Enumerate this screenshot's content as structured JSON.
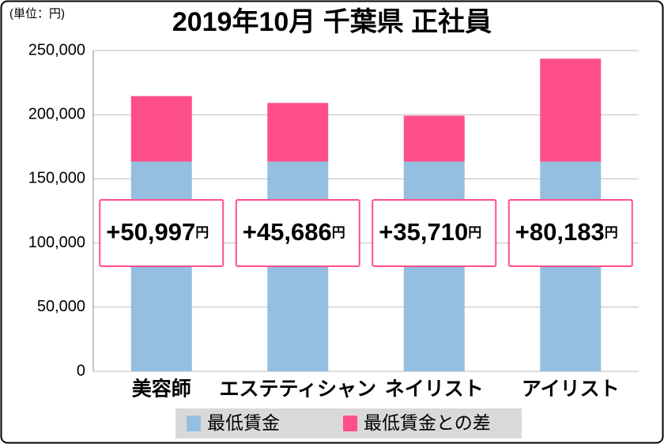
{
  "chart_data": {
    "type": "stacked_bar",
    "title": "2019年10月 千葉県 正社員",
    "unit_note": "(単位：円)",
    "categories": [
      "美容師",
      "エステティシャン",
      "ネイリスト",
      "アイリスト"
    ],
    "series": [
      {
        "name": "最低賃金",
        "color": "#95bfe0",
        "values": [
          163500,
          163500,
          163500,
          163500
        ]
      },
      {
        "name": "最低賃金との差",
        "color": "#ff4f8a",
        "values": [
          50997,
          45686,
          35710,
          80183
        ],
        "value_labels": [
          "+50,997",
          "+45,686",
          "+35,710",
          "+80,183"
        ],
        "value_label_unit": "円"
      }
    ],
    "ylim": [
      0,
      250000
    ],
    "yticks": [
      0,
      {
        "value": 50000,
        "label": "50,000"
      },
      {
        "value": 100000,
        "label": "100,000"
      },
      {
        "value": 150000,
        "label": "150,000"
      },
      {
        "value": 200000,
        "label": "200,000"
      },
      {
        "value": 250000,
        "label": "250,000"
      }
    ],
    "grid": true
  }
}
